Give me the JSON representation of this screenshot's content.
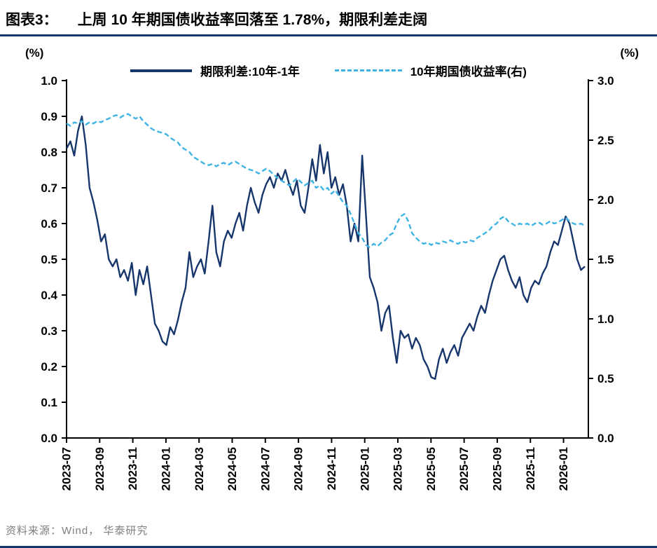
{
  "header": {
    "tag": "图表3：",
    "title": "上周 10 年期国债收益率回落至 1.78%，期限利差走阔"
  },
  "footer": {
    "source": "资料来源：Wind， 华泰研究"
  },
  "colors": {
    "accent_navy": "#17366b",
    "accent_cyan": "#3fb3e3",
    "rule_navy": "#12376e",
    "axis_black": "#000000",
    "source_gray": "#7f7f7f"
  },
  "chart_data": {
    "type": "line",
    "title": "上周10年期国债收益率回落至1.78%，期限利差走阔",
    "legend_position": "top",
    "grid": false,
    "left_axis": {
      "unit": "(%)",
      "min": 0,
      "max": 1,
      "step": 0.1
    },
    "right_axis": {
      "unit": "(%)",
      "min": 0,
      "max": 3,
      "step": 0.5
    },
    "x_span_months": 31.5,
    "x_tick_labels": [
      "2023-07",
      "2023-09",
      "2023-11",
      "2024-01",
      "2024-03",
      "2024-05",
      "2024-07",
      "2024-09",
      "2024-11",
      "2025-01",
      "2025-03",
      "2025-05",
      "2025-07",
      "2025-09",
      "2025-11",
      "2026-01"
    ],
    "x_tick_month_offsets": [
      0,
      2,
      4,
      6,
      8,
      10,
      12,
      14,
      16,
      18,
      20,
      22,
      24,
      26,
      28,
      30
    ],
    "series": [
      {
        "name": "期限利差:10年-1年",
        "axis": "left",
        "style": "solid",
        "color": "#17366b",
        "values": [
          0.81,
          0.83,
          0.79,
          0.86,
          0.9,
          0.82,
          0.7,
          0.66,
          0.61,
          0.55,
          0.57,
          0.5,
          0.48,
          0.5,
          0.45,
          0.47,
          0.44,
          0.49,
          0.4,
          0.47,
          0.43,
          0.48,
          0.4,
          0.32,
          0.3,
          0.27,
          0.26,
          0.31,
          0.29,
          0.33,
          0.38,
          0.42,
          0.52,
          0.45,
          0.48,
          0.5,
          0.46,
          0.55,
          0.65,
          0.52,
          0.48,
          0.55,
          0.58,
          0.56,
          0.6,
          0.63,
          0.58,
          0.65,
          0.7,
          0.66,
          0.63,
          0.68,
          0.71,
          0.73,
          0.7,
          0.74,
          0.72,
          0.75,
          0.71,
          0.68,
          0.72,
          0.65,
          0.63,
          0.7,
          0.78,
          0.72,
          0.82,
          0.74,
          0.8,
          0.7,
          0.73,
          0.68,
          0.71,
          0.65,
          0.55,
          0.6,
          0.55,
          0.79,
          0.62,
          0.45,
          0.42,
          0.38,
          0.3,
          0.35,
          0.37,
          0.28,
          0.21,
          0.3,
          0.28,
          0.29,
          0.25,
          0.28,
          0.26,
          0.22,
          0.2,
          0.17,
          0.165,
          0.22,
          0.25,
          0.21,
          0.24,
          0.26,
          0.23,
          0.28,
          0.3,
          0.32,
          0.3,
          0.34,
          0.37,
          0.35,
          0.4,
          0.44,
          0.47,
          0.5,
          0.51,
          0.47,
          0.44,
          0.42,
          0.45,
          0.4,
          0.38,
          0.42,
          0.44,
          0.43,
          0.46,
          0.48,
          0.52,
          0.55,
          0.54,
          0.58,
          0.62,
          0.6,
          0.55,
          0.5,
          0.47,
          0.48
        ]
      },
      {
        "name": "10年期国债收益率(右)",
        "axis": "right",
        "style": "dashed",
        "color": "#3fb3e3",
        "values": [
          2.64,
          2.62,
          2.65,
          2.64,
          2.66,
          2.63,
          2.65,
          2.64,
          2.66,
          2.65,
          2.67,
          2.68,
          2.7,
          2.71,
          2.69,
          2.71,
          2.72,
          2.7,
          2.68,
          2.7,
          2.66,
          2.63,
          2.6,
          2.58,
          2.57,
          2.56,
          2.55,
          2.52,
          2.5,
          2.48,
          2.44,
          2.42,
          2.4,
          2.36,
          2.34,
          2.32,
          2.3,
          2.29,
          2.3,
          2.28,
          2.3,
          2.31,
          2.29,
          2.31,
          2.32,
          2.3,
          2.28,
          2.26,
          2.25,
          2.24,
          2.22,
          2.24,
          2.26,
          2.24,
          2.21,
          2.18,
          2.16,
          2.14,
          2.12,
          2.15,
          2.18,
          2.15,
          2.12,
          2.14,
          2.16,
          2.1,
          2.12,
          2.08,
          2.1,
          2.05,
          2.08,
          2.03,
          1.98,
          1.95,
          1.88,
          1.8,
          1.72,
          1.68,
          1.62,
          1.6,
          1.63,
          1.61,
          1.64,
          1.66,
          1.7,
          1.72,
          1.8,
          1.86,
          1.88,
          1.82,
          1.72,
          1.68,
          1.65,
          1.63,
          1.64,
          1.62,
          1.64,
          1.63,
          1.65,
          1.64,
          1.66,
          1.64,
          1.63,
          1.65,
          1.64,
          1.66,
          1.65,
          1.68,
          1.7,
          1.72,
          1.74,
          1.78,
          1.8,
          1.84,
          1.86,
          1.82,
          1.8,
          1.78,
          1.8,
          1.79,
          1.8,
          1.78,
          1.8,
          1.81,
          1.79,
          1.8,
          1.82,
          1.8,
          1.81,
          1.83,
          1.85,
          1.82,
          1.8,
          1.79,
          1.8,
          1.78
        ]
      }
    ]
  }
}
